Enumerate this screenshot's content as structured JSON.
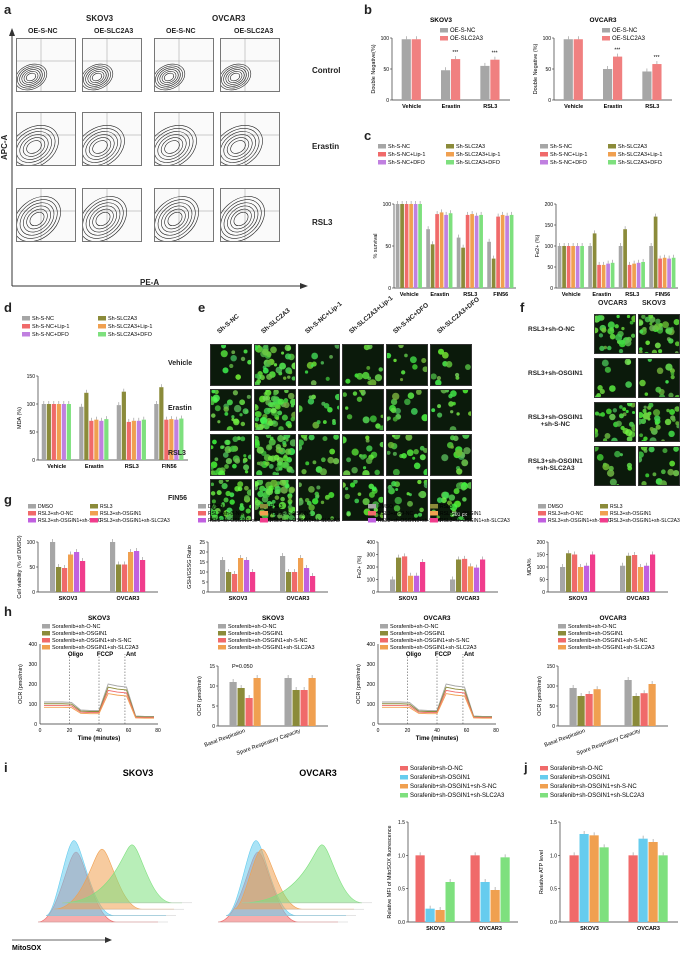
{
  "letters": {
    "a": "a",
    "b": "b",
    "c": "c",
    "d": "d",
    "e": "e",
    "f": "f",
    "g": "g",
    "h": "h",
    "i": "i",
    "j": "j"
  },
  "panel_a": {
    "groups": [
      "SKOV3",
      "OVCAR3"
    ],
    "columns": [
      "OE-S-NC",
      "OE-SLC2A3",
      "OE-S-NC",
      "OE-SLC2A3"
    ],
    "rows": [
      "Control",
      "Erastin",
      "RSL3"
    ],
    "y_axis": "APC-A",
    "x_axis": "PE-A"
  },
  "panel_b": {
    "legend": [
      "OE-S-NC",
      "OE-SLC2A3"
    ],
    "colors": [
      "#a6a6a6",
      "#f08080"
    ],
    "charts": [
      {
        "title": "SKOV3",
        "ylabel": "Double Negative(%)",
        "categories": [
          "Vehicle",
          "Erastin",
          "RSL3"
        ],
        "series": [
          [
            98,
            48,
            55
          ],
          [
            98,
            66,
            65
          ]
        ],
        "ticks": [
          "0",
          "50",
          "100"
        ],
        "stars": [
          "",
          "***",
          "***"
        ]
      },
      {
        "title": "OVCAR3",
        "ylabel": "Double Negative (%)",
        "categories": [
          "Vehicle",
          "Erastin",
          "RSL3"
        ],
        "series": [
          [
            98,
            50,
            46
          ],
          [
            98,
            70,
            58
          ]
        ],
        "ticks": [
          "0",
          "50",
          "100"
        ],
        "stars": [
          "",
          "***",
          "***"
        ]
      }
    ]
  },
  "panel_c": {
    "legend": [
      "Sh-S-NC",
      "Sh-SLC2A3",
      "Sh-S-NC+Lip-1",
      "Sh-SLC2A3+Lip-1",
      "Sh-S-NC+DFO",
      "Sh-SLC2A3+DFO"
    ],
    "colors": [
      "#a6a6a6",
      "#8b8b3a",
      "#f06a6a",
      "#f0a050",
      "#c080e0",
      "#7ee07e"
    ],
    "charts": [
      {
        "ylabel": "% survival",
        "categories": [
          "Vehicle",
          "Erastin",
          "RSL3",
          "FIN56"
        ],
        "values": [
          [
            100,
            100,
            100,
            100,
            100,
            100
          ],
          [
            70,
            52,
            88,
            90,
            87,
            89
          ],
          [
            60,
            48,
            87,
            88,
            86,
            87
          ],
          [
            55,
            35,
            85,
            87,
            86,
            87
          ]
        ],
        "ticks": [
          "0",
          "50",
          "100"
        ]
      },
      {
        "ylabel": "Fe2+ (%)",
        "categories": [
          "Vehicle",
          "Erastin",
          "RSL3",
          "FIN56"
        ],
        "values": [
          [
            100,
            100,
            100,
            100,
            100,
            100
          ],
          [
            100,
            130,
            55,
            55,
            58,
            60
          ],
          [
            100,
            140,
            55,
            58,
            60,
            62
          ],
          [
            100,
            170,
            70,
            72,
            70,
            72
          ]
        ],
        "ticks": [
          "0",
          "50",
          "100",
          "150",
          "200"
        ]
      }
    ]
  },
  "panel_d": {
    "legend": [
      "Sh-S-NC",
      "Sh-SLC2A3",
      "Sh-S-NC+Lip-1",
      "Sh-SLC2A3+Lip-1",
      "Sh-S-NC+DFO",
      "Sh-SLC2A3+DFO"
    ],
    "ylabel": "MDA (%)",
    "categories": [
      "Vehicle",
      "Erastin",
      "RSL3",
      "FIN56"
    ],
    "values": [
      [
        100,
        100,
        100,
        100,
        100,
        100
      ],
      [
        95,
        120,
        70,
        72,
        70,
        73
      ],
      [
        98,
        122,
        68,
        70,
        70,
        72
      ],
      [
        100,
        130,
        72,
        73,
        72,
        74
      ]
    ],
    "ticks": [
      "0",
      "50",
      "100",
      "150"
    ]
  },
  "panel_e": {
    "columns": [
      "Sh-S-NC",
      "Sh-SLC2A3",
      "Sh-S-NC+Lip-1",
      "Sh-SLC2A3+Lip-1",
      "Sh-S-NC+DFO",
      "Sh-SLC2A3+DFO"
    ],
    "rows": [
      "Vehicle",
      "Erastin",
      "RSL3",
      "FIN56"
    ],
    "scale": "200 px"
  },
  "panel_f": {
    "columns": [
      "OVCAR3",
      "SKOV3"
    ],
    "rows": [
      "RSL3+sh-O-NC",
      "RSL3+sh-OSGIN1",
      "RSL3+sh-OSGIN1\n+sh-S-NC",
      "RSL3+sh-OSGIN1\n+sh-SLC2A3"
    ],
    "scale": "200 px"
  },
  "panel_g": {
    "legend": [
      "DMSO",
      "RSL3",
      "RSL3+sh-O-NC",
      "RSL3+sh-OSGIN1",
      "RSL3+sh-OSGIN1+sh-S-NC",
      "RSL3+sh-OSGIN1+sh-SLC2A3"
    ],
    "colors": [
      "#a6a6a6",
      "#8b8b3a",
      "#f06a6a",
      "#f0a050",
      "#c060e0",
      "#f03c8c"
    ],
    "charts": [
      {
        "ylabel": "Cell viability (% of DMSO)",
        "categories": [
          "SKOV3",
          "OVCAR3"
        ],
        "values": [
          [
            100,
            50,
            48,
            75,
            80,
            62
          ],
          [
            100,
            55,
            55,
            80,
            82,
            64
          ]
        ],
        "ticks": [
          "0",
          "50",
          "100"
        ]
      },
      {
        "ylabel": "GSH/GSSG Ratio",
        "categories": [
          "SKOV3",
          "OVCAR3"
        ],
        "values": [
          [
            16,
            10,
            9,
            17,
            16,
            10
          ],
          [
            18,
            10,
            10,
            17,
            12,
            8
          ]
        ],
        "ticks": [
          "0",
          "5",
          "10",
          "15",
          "20",
          "25"
        ]
      },
      {
        "ylabel": "Fe2+ (%)",
        "categories": [
          "SKOV3",
          "OVCAR3"
        ],
        "values": [
          [
            100,
            275,
            285,
            130,
            130,
            240
          ],
          [
            100,
            260,
            265,
            205,
            195,
            260
          ]
        ],
        "ticks": [
          "0",
          "100",
          "200",
          "300",
          "400"
        ]
      },
      {
        "ylabel": "MDA%",
        "categories": [
          "SKOV3",
          "OVCAR3"
        ],
        "values": [
          [
            100,
            155,
            150,
            100,
            105,
            150
          ],
          [
            105,
            145,
            148,
            100,
            105,
            150
          ]
        ],
        "ticks": [
          "0",
          "50",
          "100",
          "150",
          "200"
        ]
      }
    ]
  },
  "panel_h": {
    "legend": [
      "Sorafenib+sh-O-NC",
      "Sorafenib+sh-OSGIN1",
      "Sorafenib+sh-OSGIN1+sh-S-NC",
      "Sorafenib+sh-OSGIN1+sh-SLC2A3"
    ],
    "colors": [
      "#a6a6a6",
      "#8b8b3a",
      "#f06a6a",
      "#f0a050"
    ],
    "line_charts": [
      {
        "title": "SKOV3",
        "ylabel": "OCR (pmol/min)",
        "xlabel": "Time (minutes)",
        "markers": [
          "Oligo",
          "FCCP",
          "Ant"
        ],
        "xticks": [
          "0",
          "20",
          "40",
          "60",
          "80"
        ],
        "yticks": [
          "0",
          "100",
          "200",
          "300",
          "400"
        ]
      },
      {
        "title": "OVCAR3",
        "ylabel": "OCR (pmol/min)",
        "xlabel": "Time (minutes)",
        "markers": [
          "Oligo",
          "FCCP",
          "Ant"
        ],
        "xticks": [
          "0",
          "20",
          "40",
          "60",
          "80"
        ],
        "yticks": [
          "0",
          "100",
          "200",
          "300",
          "400"
        ]
      }
    ],
    "bar_charts": [
      {
        "title": "SKOV3",
        "ylabel": "OCR (pmol/min)",
        "categories": [
          "Basal Respiration",
          "Spare Respiratory Capacity"
        ],
        "values": [
          [
            11,
            9.5,
            7,
            12
          ],
          [
            12,
            9,
            9,
            12
          ]
        ],
        "ticks": [
          "0",
          "5",
          "10",
          "15"
        ],
        "annot": "P=0.050"
      },
      {
        "title": "OVCAR3",
        "ylabel": "OCR (pmol/min)",
        "categories": [
          "Basal Respiration",
          "Spare Respiratory Capacity"
        ],
        "values": [
          [
            95,
            75,
            80,
            92
          ],
          [
            115,
            75,
            82,
            105
          ]
        ],
        "ticks": [
          "0",
          "50",
          "100",
          "150"
        ]
      }
    ]
  },
  "panel_i": {
    "titles": [
      "SKOV3",
      "OVCAR3"
    ],
    "xlabel": "MitoSOX",
    "legend": [
      "Sorafenib+sh-O-NC",
      "Sorafenib+sh-OSGIN1",
      "Sorafenib+sh-OSGIN1+sh-S-NC",
      "Sorafenib+sh-OSGIN1+sh-SLC2A3"
    ],
    "colors": [
      "#f06a6a",
      "#66ccee",
      "#f0a050",
      "#7ee07e"
    ],
    "bar": {
      "ylabel": "Relative MFI of MitoSOX fluorescence",
      "categories": [
        "SKOV3",
        "OVCAR3"
      ],
      "values": [
        [
          1.0,
          0.2,
          0.18,
          0.6
        ],
        [
          1.0,
          0.6,
          0.48,
          0.97
        ]
      ],
      "ticks": [
        "0.0",
        "0.5",
        "1.0",
        "1.5"
      ]
    }
  },
  "panel_j": {
    "legend": [
      "Sorafenib+sh-O-NC",
      "Sorafenib+sh-OSGIN1",
      "Sorafenib+sh-OSGIN1+sh-S-NC",
      "Sorafenib+sh-OSGIN1+sh-SLC2A3"
    ],
    "colors": [
      "#f06a6a",
      "#66ccee",
      "#f0a050",
      "#7ee07e"
    ],
    "ylabel": "Relative ATP level",
    "categories": [
      "SKOV3",
      "OVCAR3"
    ],
    "values": [
      [
        1.0,
        1.32,
        1.3,
        1.12
      ],
      [
        1.0,
        1.25,
        1.2,
        1.0
      ]
    ],
    "ticks": [
      "0.0",
      "0.5",
      "1.0",
      "1.5"
    ]
  }
}
